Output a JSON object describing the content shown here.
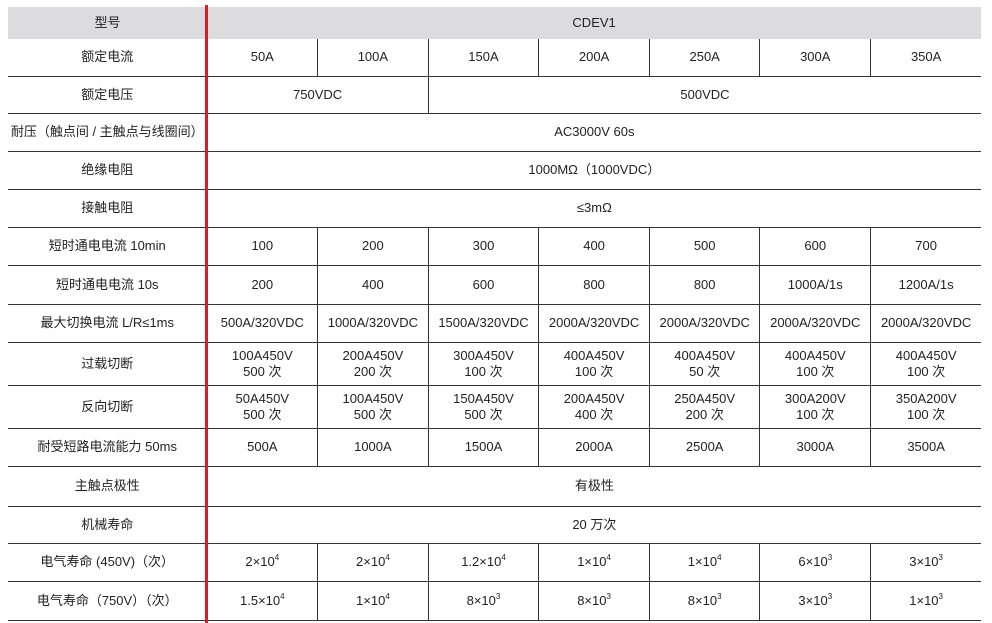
{
  "accent_color": "#d0212b",
  "header": {
    "label": "型号",
    "model": "CDEV1"
  },
  "rows": [
    {
      "label": "额定电流",
      "cells": [
        {
          "text": "50A"
        },
        {
          "text": "100A"
        },
        {
          "text": "150A"
        },
        {
          "text": "200A"
        },
        {
          "text": "250A"
        },
        {
          "text": "300A"
        },
        {
          "text": "350A"
        }
      ]
    },
    {
      "label": "额定电压",
      "cells": [
        {
          "text": "750VDC",
          "span": 2
        },
        {
          "text": "500VDC",
          "span": 5
        }
      ]
    },
    {
      "label": "耐压（触点间 / 主触点与线圈间）",
      "cells": [
        {
          "text": "AC3000V 60s",
          "span": 7
        }
      ]
    },
    {
      "label": "绝缘电阻",
      "cells": [
        {
          "text": "1000MΩ（1000VDC）",
          "span": 7
        }
      ]
    },
    {
      "label": "接触电阻",
      "cells": [
        {
          "text": "≤3mΩ",
          "span": 7
        }
      ]
    },
    {
      "label": "短时通电电流 10min",
      "cells": [
        {
          "text": "100"
        },
        {
          "text": "200"
        },
        {
          "text": "300"
        },
        {
          "text": "400"
        },
        {
          "text": "500"
        },
        {
          "text": "600"
        },
        {
          "text": "700"
        }
      ]
    },
    {
      "label": "短时通电电流 10s",
      "cells": [
        {
          "text": "200"
        },
        {
          "text": "400"
        },
        {
          "text": "600"
        },
        {
          "text": "800"
        },
        {
          "text": "800"
        },
        {
          "text": "1000A/1s"
        },
        {
          "text": "1200A/1s"
        }
      ]
    },
    {
      "label": "最大切换电流  L/R≤1ms",
      "cells": [
        {
          "text": "500A/320VDC"
        },
        {
          "text": "1000A/320VDC"
        },
        {
          "text": "1500A/320VDC"
        },
        {
          "text": "2000A/320VDC"
        },
        {
          "text": "2000A/320VDC"
        },
        {
          "text": "2000A/320VDC"
        },
        {
          "text": "2000A/320VDC"
        }
      ]
    },
    {
      "label": "过载切断",
      "cells": [
        {
          "text": "100A450V",
          "text2": "500 次"
        },
        {
          "text": "200A450V",
          "text2": "200 次"
        },
        {
          "text": "300A450V",
          "text2": "100 次"
        },
        {
          "text": "400A450V",
          "text2": "100 次"
        },
        {
          "text": "400A450V",
          "text2": "50 次"
        },
        {
          "text": "400A450V",
          "text2": "100 次"
        },
        {
          "text": "400A450V",
          "text2": "100 次"
        }
      ]
    },
    {
      "label": "反向切断",
      "cells": [
        {
          "text": "50A450V",
          "text2": "500 次"
        },
        {
          "text": "100A450V",
          "text2": "500 次"
        },
        {
          "text": "150A450V",
          "text2": "500 次"
        },
        {
          "text": "200A450V",
          "text2": "400 次"
        },
        {
          "text": "250A450V",
          "text2": "200 次"
        },
        {
          "text": "300A200V",
          "text2": "100 次"
        },
        {
          "text": "350A200V",
          "text2": "100 次"
        }
      ]
    },
    {
      "label": "耐受短路电流能力 50ms",
      "cells": [
        {
          "text": "500A"
        },
        {
          "text": "1000A"
        },
        {
          "text": "1500A"
        },
        {
          "text": "2000A"
        },
        {
          "text": "2500A"
        },
        {
          "text": "3000A"
        },
        {
          "text": "3500A"
        }
      ]
    },
    {
      "label": "主触点极性",
      "cells": [
        {
          "text": "有极性",
          "span": 7
        }
      ]
    },
    {
      "label": "机械寿命",
      "cells": [
        {
          "text": "20 万次",
          "span": 7
        }
      ]
    },
    {
      "label": "电气寿命 (450V)（次）",
      "cells": [
        {
          "text": "2×10",
          "exp": "4"
        },
        {
          "text": "2×10",
          "exp": "4"
        },
        {
          "text": "1.2×10",
          "exp": "4"
        },
        {
          "text": "1×10",
          "exp": "4"
        },
        {
          "text": "1×10",
          "exp": "4"
        },
        {
          "text": "6×10",
          "exp": "3"
        },
        {
          "text": "3×10",
          "exp": "3"
        }
      ]
    },
    {
      "label": "电气寿命（750V）（次）",
      "cells": [
        {
          "text": "1.5×10",
          "exp": "4"
        },
        {
          "text": "1×10",
          "exp": "4"
        },
        {
          "text": "8×10",
          "exp": "3"
        },
        {
          "text": "8×10",
          "exp": "3"
        },
        {
          "text": "8×10",
          "exp": "3"
        },
        {
          "text": "3×10",
          "exp": "3"
        },
        {
          "text": "1×10",
          "exp": "3"
        }
      ]
    }
  ]
}
